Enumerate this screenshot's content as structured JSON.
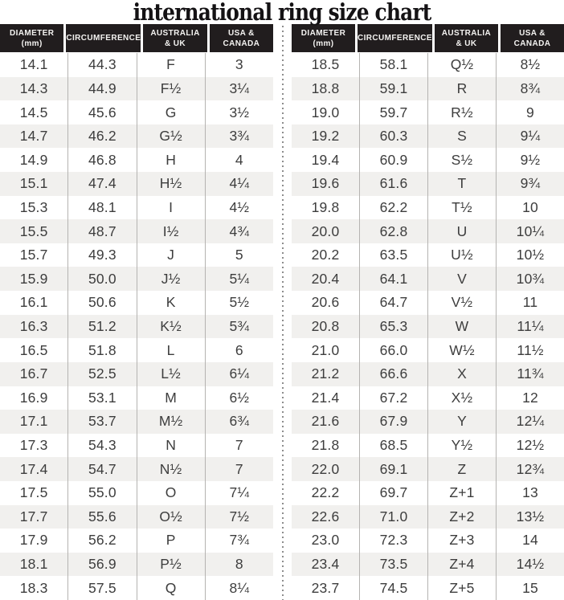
{
  "title": "international ring size chart",
  "colors": {
    "title_color": "#141214",
    "header_bg": "#211d1e",
    "header_text": "#f4f3f1",
    "row_bg": "#ffffff",
    "row_alt_bg": "#f1f0ee",
    "body_text": "#3d3d3d",
    "column_rule": "#b5b3b1",
    "divider_dot": "#8d8d8d"
  },
  "chart_data": {
    "type": "table",
    "title": "international ring size chart",
    "columns": [
      "Diameter (mm)",
      "Circumference",
      "Australia & UK",
      "USA & Canada"
    ],
    "column_headers": [
      [
        "DIAMETER",
        "(mm)"
      ],
      [
        "CIRCUMFERENCE"
      ],
      [
        "AUSTRALIA",
        "& UK"
      ],
      [
        "USA &",
        "CANADA"
      ]
    ],
    "left_table_rows": [
      [
        "14.1",
        "44.3",
        "F",
        "3"
      ],
      [
        "14.3",
        "44.9",
        "F½",
        "3¼"
      ],
      [
        "14.5",
        "45.6",
        "G",
        "3½"
      ],
      [
        "14.7",
        "46.2",
        "G½",
        "3¾"
      ],
      [
        "14.9",
        "46.8",
        "H",
        "4"
      ],
      [
        "15.1",
        "47.4",
        "H½",
        "4¼"
      ],
      [
        "15.3",
        "48.1",
        "I",
        "4½"
      ],
      [
        "15.5",
        "48.7",
        "I½",
        "4¾"
      ],
      [
        "15.7",
        "49.3",
        "J",
        "5"
      ],
      [
        "15.9",
        "50.0",
        "J½",
        "5¼"
      ],
      [
        "16.1",
        "50.6",
        "K",
        "5½"
      ],
      [
        "16.3",
        "51.2",
        "K½",
        "5¾"
      ],
      [
        "16.5",
        "51.8",
        "L",
        "6"
      ],
      [
        "16.7",
        "52.5",
        "L½",
        "6¼"
      ],
      [
        "16.9",
        "53.1",
        "M",
        "6½"
      ],
      [
        "17.1",
        "53.7",
        "M½",
        "6¾"
      ],
      [
        "17.3",
        "54.3",
        "N",
        "7"
      ],
      [
        "17.4",
        "54.7",
        "N½",
        "7"
      ],
      [
        "17.5",
        "55.0",
        "O",
        "7¼"
      ],
      [
        "17.7",
        "55.6",
        "O½",
        "7½"
      ],
      [
        "17.9",
        "56.2",
        "P",
        "7¾"
      ],
      [
        "18.1",
        "56.9",
        "P½",
        "8"
      ],
      [
        "18.3",
        "57.5",
        "Q",
        "8¼"
      ]
    ],
    "right_table_rows": [
      [
        "18.5",
        "58.1",
        "Q½",
        "8½"
      ],
      [
        "18.8",
        "59.1",
        "R",
        "8¾"
      ],
      [
        "19.0",
        "59.7",
        "R½",
        "9"
      ],
      [
        "19.2",
        "60.3",
        "S",
        "9¼"
      ],
      [
        "19.4",
        "60.9",
        "S½",
        "9½"
      ],
      [
        "19.6",
        "61.6",
        "T",
        "9¾"
      ],
      [
        "19.8",
        "62.2",
        "T½",
        "10"
      ],
      [
        "20.0",
        "62.8",
        "U",
        "10¼"
      ],
      [
        "20.2",
        "63.5",
        "U½",
        "10½"
      ],
      [
        "20.4",
        "64.1",
        "V",
        "10¾"
      ],
      [
        "20.6",
        "64.7",
        "V½",
        "11"
      ],
      [
        "20.8",
        "65.3",
        "W",
        "11¼"
      ],
      [
        "21.0",
        "66.0",
        "W½",
        "11½"
      ],
      [
        "21.2",
        "66.6",
        "X",
        "11¾"
      ],
      [
        "21.4",
        "67.2",
        "X½",
        "12"
      ],
      [
        "21.6",
        "67.9",
        "Y",
        "12¼"
      ],
      [
        "21.8",
        "68.5",
        "Y½",
        "12½"
      ],
      [
        "22.0",
        "69.1",
        "Z",
        "12¾"
      ],
      [
        "22.2",
        "69.7",
        "Z+1",
        "13"
      ],
      [
        "22.6",
        "71.0",
        "Z+2",
        "13½"
      ],
      [
        "23.0",
        "72.3",
        "Z+3",
        "14"
      ],
      [
        "23.4",
        "73.5",
        "Z+4",
        "14½"
      ],
      [
        "23.7",
        "74.5",
        "Z+5",
        "15"
      ]
    ]
  }
}
